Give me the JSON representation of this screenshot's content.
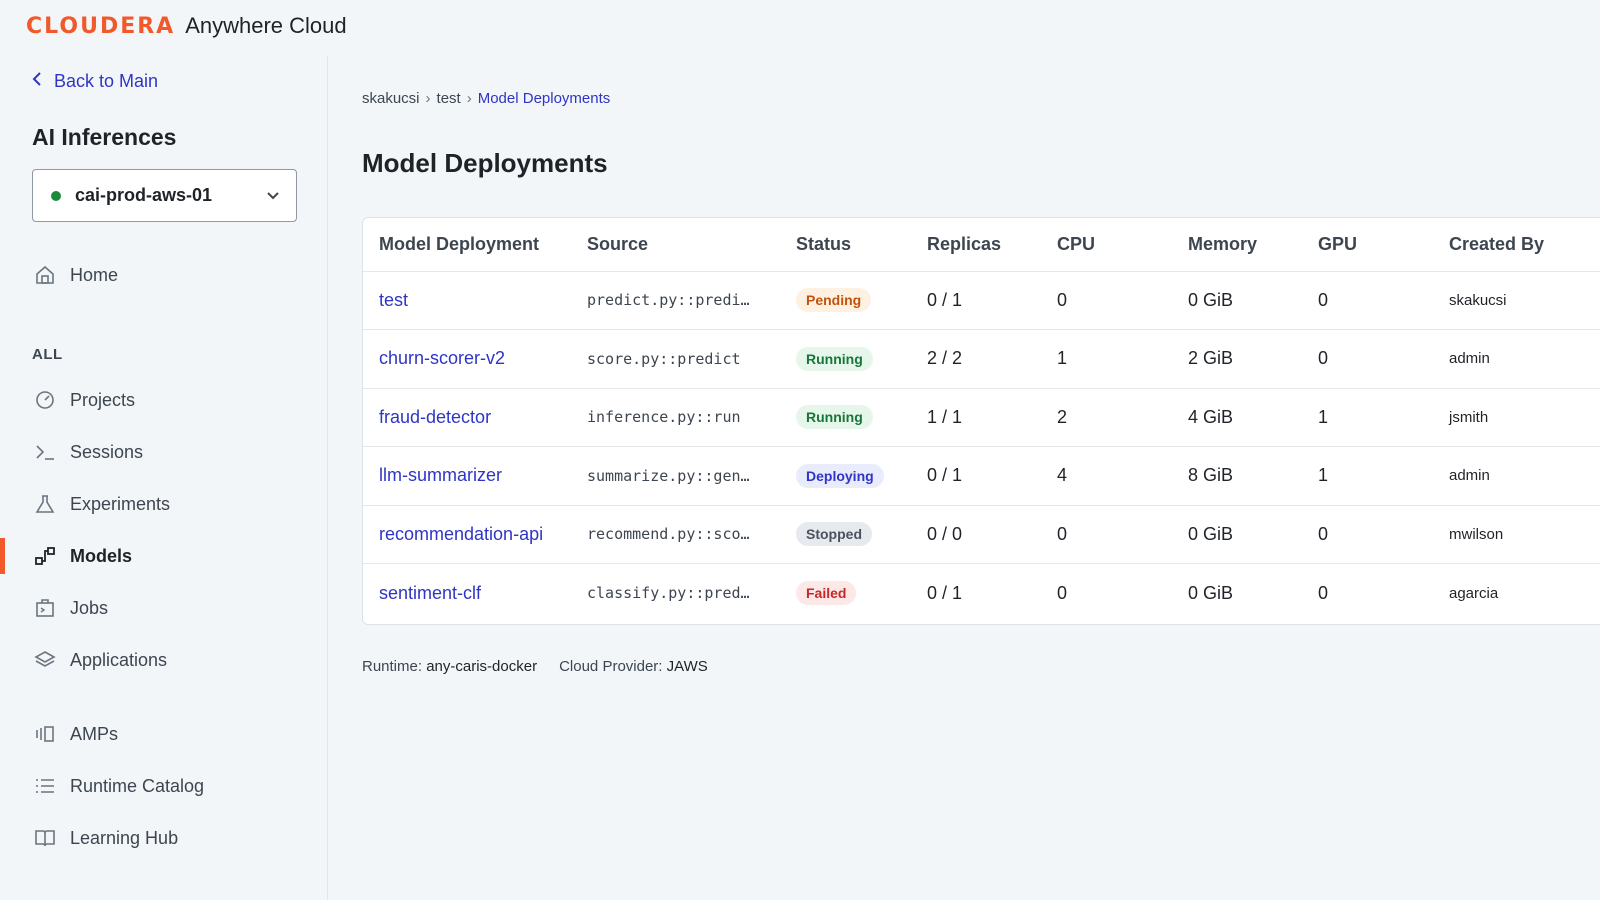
{
  "brand": {
    "logo": "CLOUDERA",
    "product": "Anywhere Cloud"
  },
  "sidebar": {
    "back_label": "Back to Main",
    "section_title": "AI Inferences",
    "workspace": {
      "name": "cai-prod-aws-01",
      "status_color": "#1b8a3a"
    },
    "items": [
      {
        "label": "Home",
        "icon": "home-icon"
      },
      {
        "label": "Projects",
        "icon": "projects-icon"
      },
      {
        "label": "Sessions",
        "icon": "terminal-icon"
      },
      {
        "label": "Experiments",
        "icon": "flask-icon"
      },
      {
        "label": "Models",
        "icon": "models-icon",
        "active": true
      },
      {
        "label": "Jobs",
        "icon": "jobs-icon"
      },
      {
        "label": "Applications",
        "icon": "layers-icon"
      },
      {
        "label": "AMPs",
        "icon": "amps-icon"
      },
      {
        "label": "Runtime Catalog",
        "icon": "list-icon"
      },
      {
        "label": "Learning Hub",
        "icon": "book-icon"
      }
    ],
    "group_label": "ALL"
  },
  "breadcrumb": [
    "skakucsi",
    "test",
    "Model Deployments"
  ],
  "page_title": "Model Deployments",
  "table": {
    "columns": [
      "Model Deployment",
      "Source",
      "Status",
      "Replicas",
      "CPU",
      "Memory",
      "GPU",
      "Created By"
    ],
    "rows": [
      {
        "name": "test",
        "source": "predict.py::predi…",
        "status": "Pending",
        "status_kind": "pending",
        "replicas": "0 / 1",
        "cpu": "0",
        "memory": "0 GiB",
        "gpu": "0",
        "created_by": "skakucsi"
      },
      {
        "name": "churn-scorer-v2",
        "source": "score.py::predict",
        "status": "Running",
        "status_kind": "running",
        "replicas": "2 / 2",
        "cpu": "1",
        "memory": "2 GiB",
        "gpu": "0",
        "created_by": "admin"
      },
      {
        "name": "fraud-detector",
        "source": "inference.py::run",
        "status": "Running",
        "status_kind": "running",
        "replicas": "1 / 1",
        "cpu": "2",
        "memory": "4 GiB",
        "gpu": "1",
        "created_by": "jsmith"
      },
      {
        "name": "llm-summarizer",
        "source": "summarize.py::gen…",
        "status": "Deploying",
        "status_kind": "deploying",
        "replicas": "0 / 1",
        "cpu": "4",
        "memory": "8 GiB",
        "gpu": "1",
        "created_by": "admin"
      },
      {
        "name": "recommendation-api",
        "source": "recommend.py::sco…",
        "status": "Stopped",
        "status_kind": "stopped",
        "replicas": "0 / 0",
        "cpu": "0",
        "memory": "0 GiB",
        "gpu": "0",
        "created_by": "mwilson"
      },
      {
        "name": "sentiment-clf",
        "source": "classify.py::pred…",
        "status": "Failed",
        "status_kind": "failed",
        "replicas": "0 / 1",
        "cpu": "0",
        "memory": "0 GiB",
        "gpu": "0",
        "created_by": "agarcia"
      }
    ]
  },
  "footer": {
    "runtime_label": "Runtime:",
    "runtime_value": "any-caris-docker",
    "provider_label": "Cloud Provider:",
    "provider_value": "JAWS"
  },
  "colors": {
    "accent": "#f2592a",
    "link": "#2f35c4"
  }
}
